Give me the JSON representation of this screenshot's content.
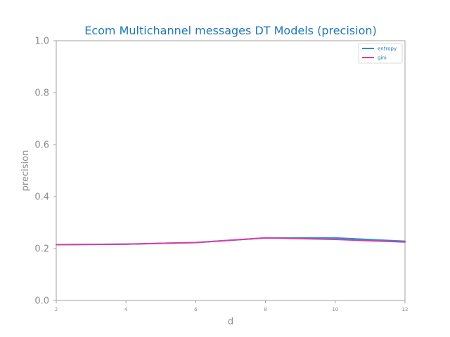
{
  "chart_data": {
    "type": "line",
    "title": "Ecom Multichannel messages DT Models (precision)",
    "xlabel": "d",
    "ylabel": "precision",
    "x": [
      2,
      4,
      6,
      8,
      10,
      12
    ],
    "xlim": [
      2,
      12
    ],
    "ylim": [
      0.0,
      1.0
    ],
    "xticks": [
      "2",
      "4",
      "6",
      "8",
      "10",
      "12"
    ],
    "yticks": [
      "0.0",
      "0.2",
      "0.4",
      "0.6",
      "0.8",
      "1.0"
    ],
    "grid": false,
    "legend_position": "top-right",
    "series": [
      {
        "name": "entropy",
        "color": "#1f8fd6",
        "values": [
          0.215,
          0.217,
          0.223,
          0.241,
          0.241,
          0.228
        ]
      },
      {
        "name": "gini",
        "color": "#d63fa5",
        "values": [
          0.215,
          0.217,
          0.223,
          0.241,
          0.235,
          0.225
        ]
      }
    ]
  }
}
